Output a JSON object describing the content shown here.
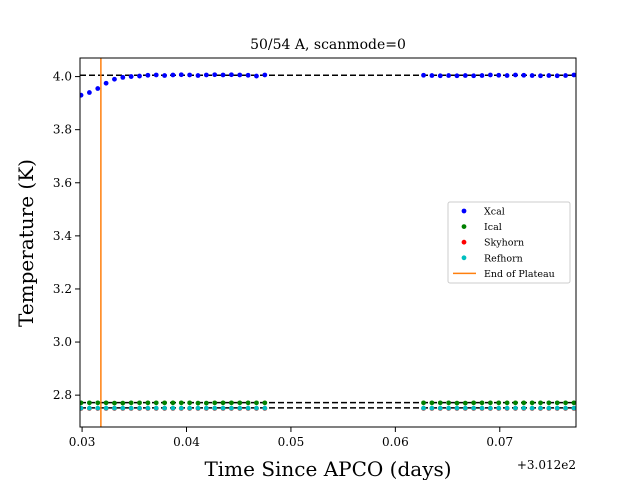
{
  "chart_data": {
    "type": "scatter",
    "title": "50/54 A, scanmode=0",
    "xlabel": "Time Since APCO (days)",
    "ylabel": "Temperature (K)",
    "x_offset_label": "+3.012e2",
    "xlim": [
      0.0298,
      0.0773
    ],
    "ylim": [
      2.68,
      4.07
    ],
    "xticks": [
      0.03,
      0.04,
      0.05,
      0.06,
      0.07
    ],
    "xtick_labels": [
      "0.03",
      "0.04",
      "0.05",
      "0.06",
      "0.07"
    ],
    "yticks": [
      2.8,
      3.0,
      3.2,
      3.4,
      3.6,
      3.8,
      4.0
    ],
    "ytick_labels": [
      "2.8",
      "3.0",
      "3.2",
      "3.4",
      "3.6",
      "3.8",
      "4.0"
    ],
    "grid": false,
    "legend_position": "center-right",
    "reference_lines": [
      {
        "y": 4.005,
        "style": "dashed",
        "color": "#000000"
      },
      {
        "y": 2.772,
        "style": "dashed",
        "color": "#000000"
      },
      {
        "y": 2.752,
        "style": "dashed",
        "color": "#000000"
      }
    ],
    "vertical_line": {
      "name": "End of Plateau",
      "x": 0.0318,
      "color": "#ff7f0e"
    },
    "series": [
      {
        "name": "Xcal",
        "color": "#0000ff",
        "x": [
          0.0299,
          0.0307,
          0.0315,
          0.0323,
          0.0331,
          0.0339,
          0.0347,
          0.0355,
          0.0363,
          0.0371,
          0.0379,
          0.0387,
          0.0395,
          0.0403,
          0.0411,
          0.0419,
          0.0427,
          0.0435,
          0.0443,
          0.0451,
          0.0459,
          0.0467,
          0.0475,
          0.0627,
          0.0635,
          0.0643,
          0.0651,
          0.0659,
          0.0667,
          0.0675,
          0.0683,
          0.0691,
          0.0699,
          0.0707,
          0.0715,
          0.0723,
          0.0731,
          0.0739,
          0.0747,
          0.0755,
          0.0763,
          0.0771
        ],
        "y": [
          3.93,
          3.94,
          3.955,
          3.975,
          3.99,
          3.997,
          4.0,
          4.002,
          4.005,
          4.006,
          4.004,
          4.006,
          4.007,
          4.006,
          4.004,
          4.006,
          4.007,
          4.006,
          4.007,
          4.006,
          4.005,
          4.002,
          4.006,
          4.005,
          4.004,
          4.003,
          4.004,
          4.003,
          4.004,
          4.003,
          4.004,
          4.006,
          4.005,
          4.004,
          4.006,
          4.005,
          4.004,
          4.003,
          4.004,
          4.003,
          4.004,
          4.006
        ]
      },
      {
        "name": "Ical",
        "color": "#008000",
        "x": [
          0.0299,
          0.0307,
          0.0315,
          0.0323,
          0.0331,
          0.0339,
          0.0347,
          0.0355,
          0.0363,
          0.0371,
          0.0379,
          0.0387,
          0.0395,
          0.0403,
          0.0411,
          0.0419,
          0.0427,
          0.0435,
          0.0443,
          0.0451,
          0.0459,
          0.0467,
          0.0475,
          0.0627,
          0.0635,
          0.0643,
          0.0651,
          0.0659,
          0.0667,
          0.0675,
          0.0683,
          0.0691,
          0.0699,
          0.0707,
          0.0715,
          0.0723,
          0.0731,
          0.0739,
          0.0747,
          0.0755,
          0.0763,
          0.0771
        ],
        "y": [
          2.771,
          2.771,
          2.771,
          2.771,
          2.77,
          2.77,
          2.771,
          2.771,
          2.771,
          2.771,
          2.771,
          2.771,
          2.771,
          2.771,
          2.77,
          2.77,
          2.771,
          2.771,
          2.771,
          2.771,
          2.771,
          2.771,
          2.771,
          2.771,
          2.771,
          2.771,
          2.771,
          2.77,
          2.77,
          2.771,
          2.771,
          2.771,
          2.771,
          2.771,
          2.771,
          2.771,
          2.771,
          2.771,
          2.771,
          2.771,
          2.771,
          2.771
        ]
      },
      {
        "name": "Skyhorn",
        "color": "#ff0000",
        "x": [
          0.0299,
          0.0307,
          0.0315,
          0.0323,
          0.0331,
          0.0339,
          0.0347,
          0.0355,
          0.0363,
          0.0371,
          0.0379,
          0.0387,
          0.0395,
          0.0403,
          0.0411,
          0.0419,
          0.0427,
          0.0435,
          0.0443,
          0.0451,
          0.0459,
          0.0467,
          0.0475,
          0.0627,
          0.0635,
          0.0643,
          0.0651,
          0.0659,
          0.0667,
          0.0675,
          0.0683,
          0.0691,
          0.0699,
          0.0707,
          0.0715,
          0.0723,
          0.0731,
          0.0739,
          0.0747,
          0.0755,
          0.0763,
          0.0771
        ],
        "y": [
          2.75,
          2.75,
          2.75,
          2.75,
          2.75,
          2.75,
          2.75,
          2.75,
          2.75,
          2.75,
          2.75,
          2.75,
          2.75,
          2.75,
          2.75,
          2.75,
          2.75,
          2.75,
          2.75,
          2.75,
          2.75,
          2.75,
          2.75,
          2.75,
          2.75,
          2.75,
          2.75,
          2.75,
          2.75,
          2.75,
          2.75,
          2.75,
          2.75,
          2.75,
          2.75,
          2.75,
          2.75,
          2.75,
          2.75,
          2.75,
          2.75,
          2.75
        ]
      },
      {
        "name": "Refhorn",
        "color": "#00bfbf",
        "x": [
          0.0299,
          0.0307,
          0.0315,
          0.0323,
          0.0331,
          0.0339,
          0.0347,
          0.0355,
          0.0363,
          0.0371,
          0.0379,
          0.0387,
          0.0395,
          0.0403,
          0.0411,
          0.0419,
          0.0427,
          0.0435,
          0.0443,
          0.0451,
          0.0459,
          0.0467,
          0.0475,
          0.0627,
          0.0635,
          0.0643,
          0.0651,
          0.0659,
          0.0667,
          0.0675,
          0.0683,
          0.0691,
          0.0699,
          0.0707,
          0.0715,
          0.0723,
          0.0731,
          0.0739,
          0.0747,
          0.0755,
          0.0763,
          0.0771
        ],
        "y": [
          2.751,
          2.751,
          2.751,
          2.751,
          2.751,
          2.751,
          2.751,
          2.751,
          2.751,
          2.751,
          2.751,
          2.751,
          2.751,
          2.751,
          2.751,
          2.751,
          2.751,
          2.751,
          2.751,
          2.751,
          2.751,
          2.751,
          2.751,
          2.751,
          2.751,
          2.751,
          2.751,
          2.751,
          2.751,
          2.751,
          2.751,
          2.751,
          2.751,
          2.751,
          2.751,
          2.751,
          2.751,
          2.751,
          2.751,
          2.751,
          2.751,
          2.751
        ]
      }
    ]
  }
}
